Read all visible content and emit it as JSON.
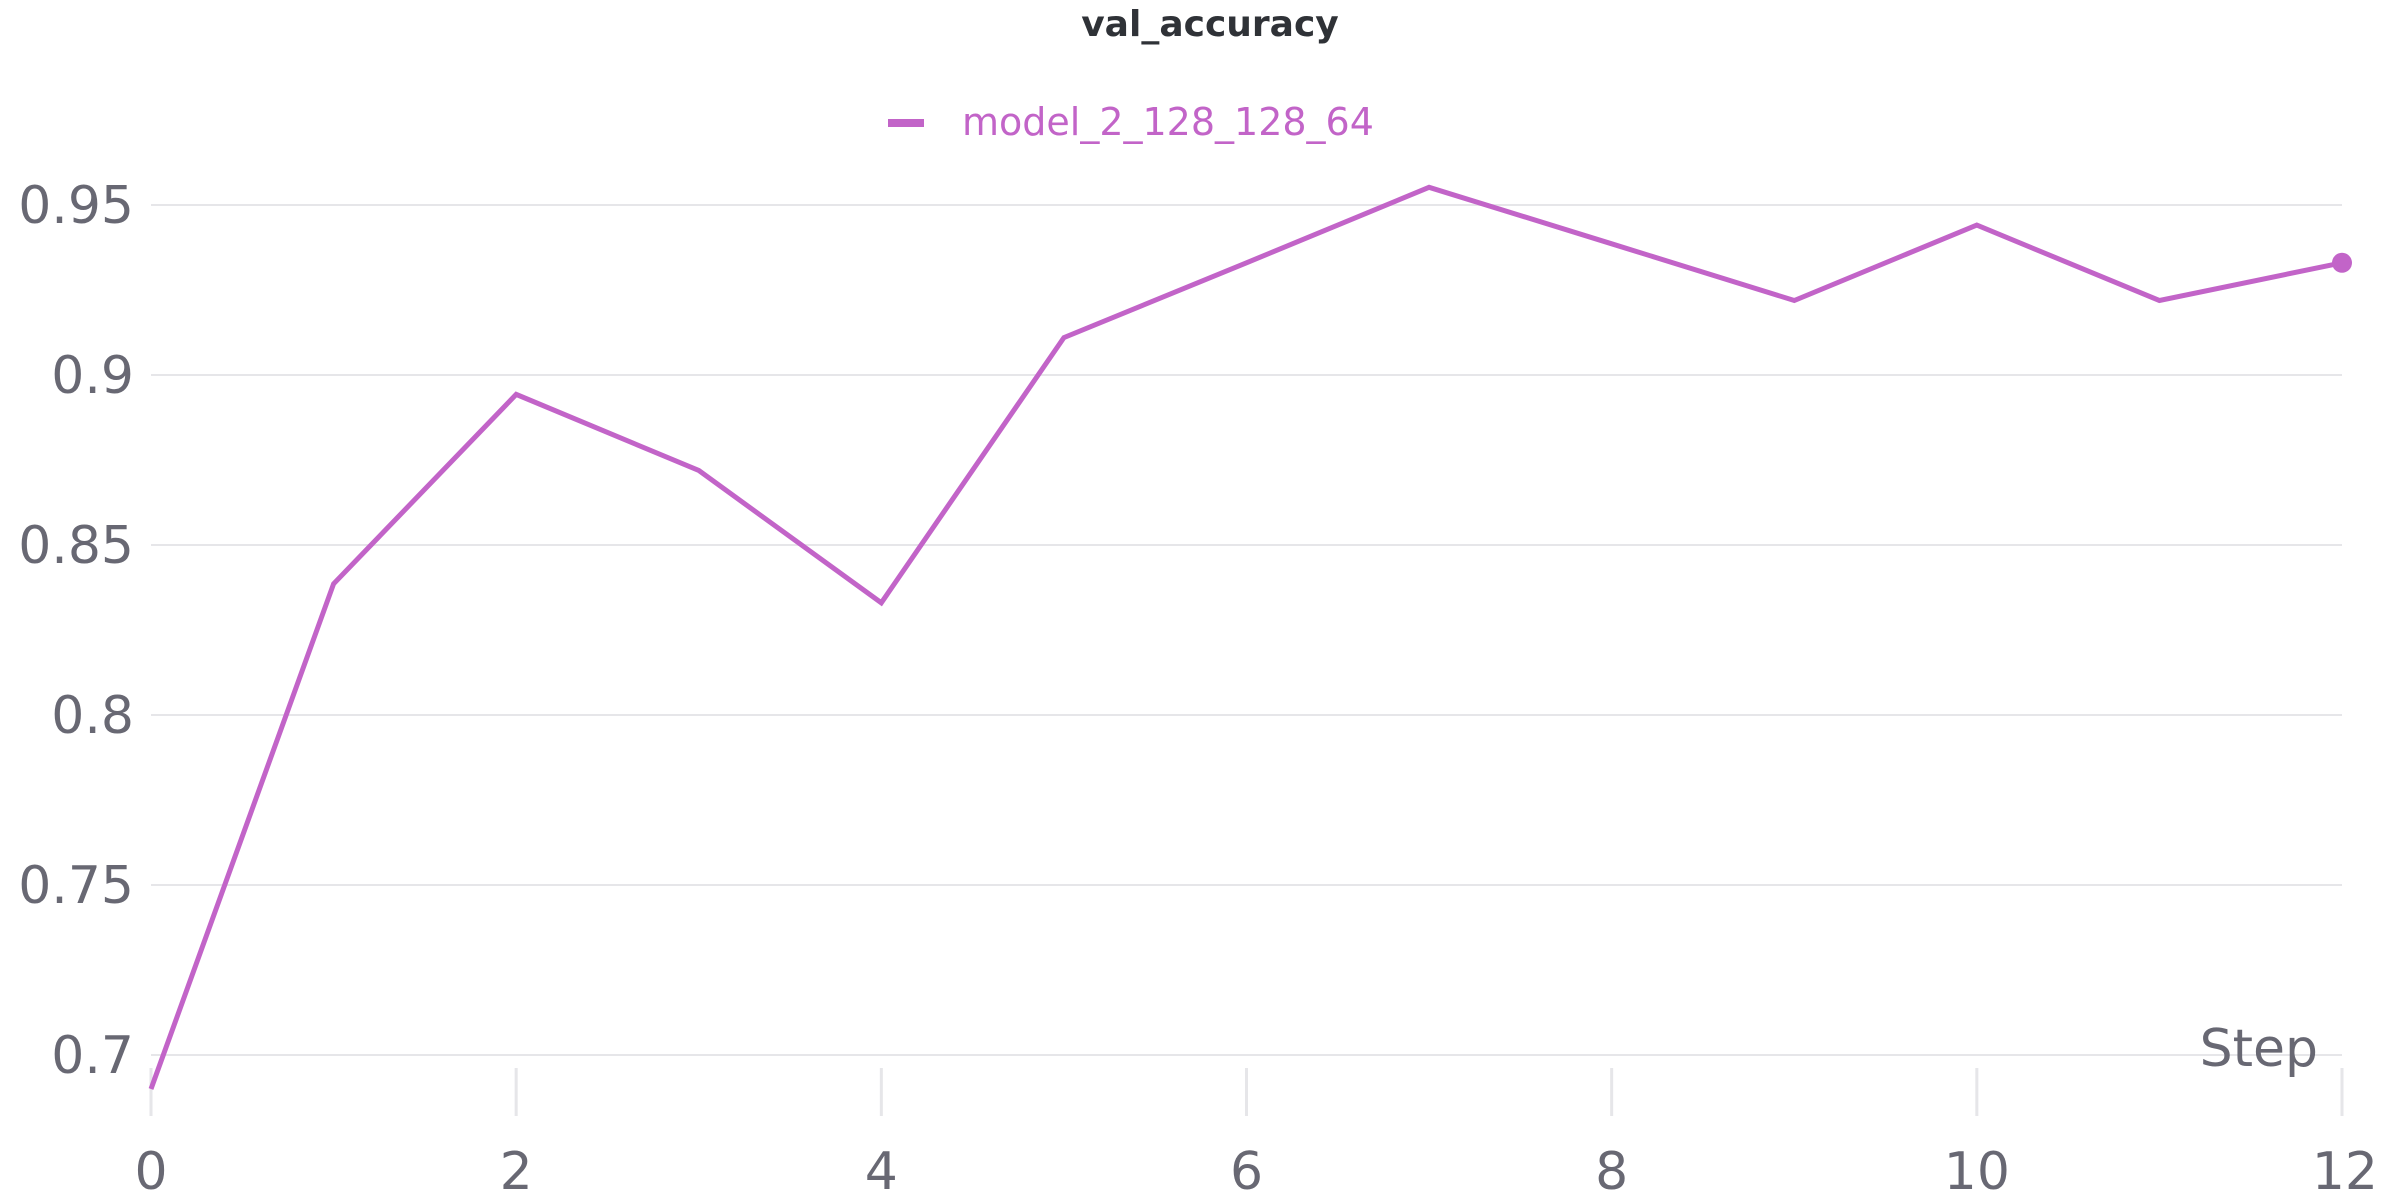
{
  "chart_data": {
    "type": "line",
    "title": "val_accuracy",
    "xlabel": "Step",
    "ylabel": "",
    "xlim": [
      0,
      12
    ],
    "ylim": [
      0.7,
      0.95
    ],
    "x_ticks": [
      0,
      2,
      4,
      6,
      8,
      10,
      12
    ],
    "y_ticks": [
      {
        "value": 0.7,
        "label": "0.7"
      },
      {
        "value": 0.75,
        "label": "0.75"
      },
      {
        "value": 0.8,
        "label": "0.8"
      },
      {
        "value": 0.85,
        "label": "0.85"
      },
      {
        "value": 0.9,
        "label": "0.9"
      },
      {
        "value": 0.95,
        "label": "0.95"
      }
    ],
    "grid": "horizontal",
    "legend_position": "top-center",
    "series": [
      {
        "name": "model_2_128_128_64",
        "color": "#c264c8",
        "x": [
          0,
          1,
          2,
          3,
          4,
          5,
          6,
          7,
          8,
          9,
          10,
          11,
          12
        ],
        "y": [
          0.69,
          0.8386,
          0.8943,
          0.8719,
          0.833,
          0.911,
          0.933,
          0.9552,
          0.9386,
          0.9219,
          0.9441,
          0.9219,
          0.933
        ]
      }
    ]
  }
}
